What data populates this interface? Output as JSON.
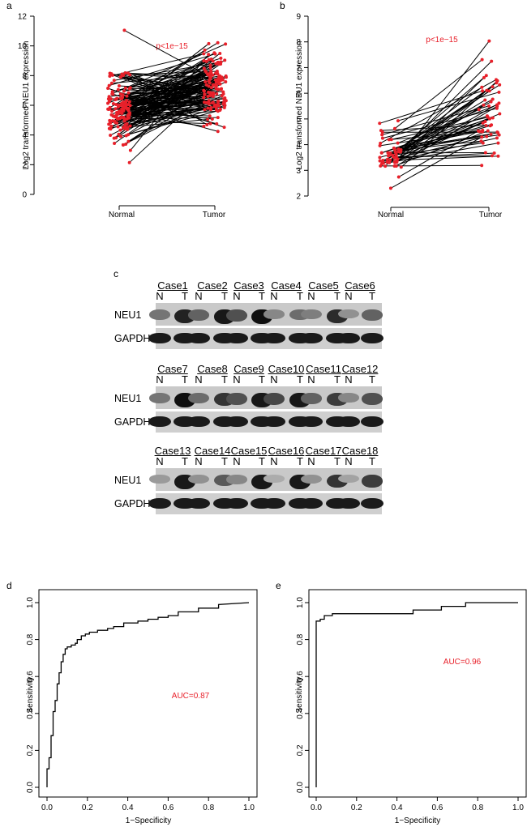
{
  "panel_labels": [
    "a",
    "b",
    "c",
    "d",
    "e"
  ],
  "western_blot": {
    "row_labels": {
      "target": "NEU1",
      "control": "GAPDH"
    },
    "lane_labels": [
      "N",
      "T"
    ],
    "groups": [
      {
        "cases": [
          "Case1",
          "Case2",
          "Case3",
          "Case4",
          "Case5",
          "Case6"
        ]
      },
      {
        "cases": [
          "Case7",
          "Case8",
          "Case9",
          "Case10",
          "Case11",
          "Case12"
        ]
      },
      {
        "cases": [
          "Case13",
          "Case14",
          "Case15",
          "Case16",
          "Case17",
          "Case18"
        ]
      }
    ]
  },
  "chart_data": [
    {
      "id": "a",
      "type": "line",
      "subtype": "paired-slope",
      "title": "",
      "ylabel": "Log2 transformed NEU1 expression",
      "categories": [
        "Normal",
        "Tumor"
      ],
      "ylim": [
        0,
        12
      ],
      "yticks": [
        0,
        2,
        4,
        6,
        8,
        10,
        12
      ],
      "annotation": "p<1e−15",
      "annotation_color": "#e8202a",
      "point_color": "#e8202a",
      "note": "approximately 140 paired samples; values estimated"
    },
    {
      "id": "b",
      "type": "line",
      "subtype": "paired-slope",
      "title": "",
      "ylabel": "Log2 transformed NEU1 expression",
      "categories": [
        "Normal",
        "Tumor"
      ],
      "ylim": [
        2,
        9
      ],
      "yticks": [
        2,
        3,
        4,
        5,
        6,
        7,
        8,
        9
      ],
      "annotation": "p<1e−15",
      "annotation_color": "#e8202a",
      "point_color": "#e8202a",
      "note": "approximately 50 paired samples; values estimated"
    },
    {
      "id": "d",
      "type": "line",
      "subtype": "roc-step",
      "xlabel": "1−Specificity",
      "ylabel": "Sensitivity",
      "xlim": [
        0,
        1
      ],
      "ylim": [
        0,
        1
      ],
      "xticks": [
        "0.0",
        "0.2",
        "0.4",
        "0.6",
        "0.8",
        "1.0"
      ],
      "yticks": [
        "0.0",
        "0.2",
        "0.4",
        "0.6",
        "0.8",
        "1.0"
      ],
      "annotation": "AUC=0.87",
      "annotation_color": "#e8202a",
      "x": [
        0,
        0,
        0.01,
        0.01,
        0.02,
        0.02,
        0.03,
        0.03,
        0.04,
        0.04,
        0.05,
        0.05,
        0.06,
        0.06,
        0.07,
        0.07,
        0.08,
        0.08,
        0.09,
        0.09,
        0.1,
        0.1,
        0.12,
        0.12,
        0.14,
        0.14,
        0.15,
        0.15,
        0.17,
        0.17,
        0.19,
        0.19,
        0.21,
        0.21,
        0.25,
        0.25,
        0.3,
        0.3,
        0.33,
        0.33,
        0.38,
        0.38,
        0.45,
        0.45,
        0.5,
        0.5,
        0.55,
        0.55,
        0.6,
        0.6,
        0.65,
        0.65,
        0.75,
        0.75,
        0.85,
        0.85,
        1.0
      ],
      "y": [
        0,
        0.1,
        0.1,
        0.16,
        0.16,
        0.28,
        0.28,
        0.41,
        0.41,
        0.47,
        0.47,
        0.56,
        0.56,
        0.62,
        0.62,
        0.68,
        0.68,
        0.72,
        0.72,
        0.75,
        0.75,
        0.76,
        0.76,
        0.77,
        0.77,
        0.78,
        0.78,
        0.8,
        0.8,
        0.82,
        0.82,
        0.83,
        0.83,
        0.84,
        0.84,
        0.85,
        0.85,
        0.86,
        0.86,
        0.87,
        0.87,
        0.89,
        0.89,
        0.9,
        0.9,
        0.91,
        0.91,
        0.92,
        0.92,
        0.93,
        0.93,
        0.95,
        0.95,
        0.97,
        0.97,
        0.99,
        1.0
      ]
    },
    {
      "id": "e",
      "type": "line",
      "subtype": "roc-step",
      "xlabel": "1−Specificity",
      "ylabel": "Sensitivity",
      "xlim": [
        0,
        1
      ],
      "ylim": [
        0,
        1
      ],
      "xticks": [
        "0.0",
        "0.2",
        "0.4",
        "0.6",
        "0.8",
        "1.0"
      ],
      "yticks": [
        "0.0",
        "0.2",
        "0.4",
        "0.6",
        "0.8",
        "1.0"
      ],
      "annotation": "AUC=0.96",
      "annotation_color": "#e8202a",
      "x": [
        0,
        0,
        0.02,
        0.02,
        0.04,
        0.04,
        0.08,
        0.08,
        0.48,
        0.48,
        0.62,
        0.62,
        0.74,
        0.74,
        1.0
      ],
      "y": [
        0,
        0.9,
        0.9,
        0.91,
        0.91,
        0.93,
        0.93,
        0.94,
        0.94,
        0.96,
        0.96,
        0.98,
        0.98,
        1.0,
        1.0
      ]
    }
  ]
}
